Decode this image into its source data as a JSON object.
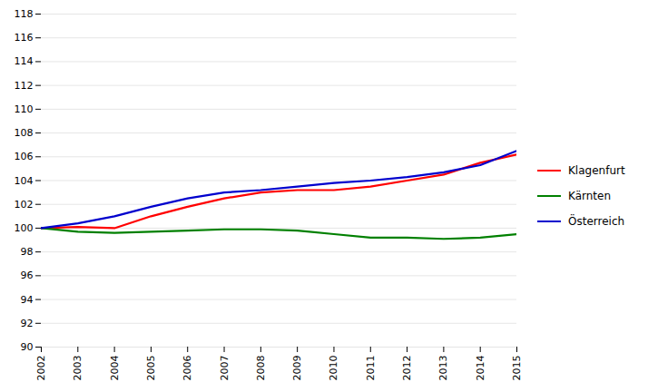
{
  "chart_data": {
    "type": "line",
    "x": [
      2002,
      2003,
      2004,
      2005,
      2006,
      2007,
      2008,
      2009,
      2010,
      2011,
      2012,
      2013,
      2014,
      2015
    ],
    "series": [
      {
        "name": "Klagenfurt",
        "color": "#ff0000",
        "values": [
          100.0,
          100.1,
          100.0,
          101.0,
          101.8,
          102.5,
          103.0,
          103.2,
          103.2,
          103.5,
          104.0,
          104.5,
          105.5,
          106.2
        ]
      },
      {
        "name": "Kärnten",
        "color": "#008000",
        "values": [
          100.0,
          99.7,
          99.6,
          99.7,
          99.8,
          99.9,
          99.9,
          99.8,
          99.5,
          99.2,
          99.2,
          99.1,
          99.2,
          99.5
        ]
      },
      {
        "name": "Österreich",
        "color": "#0000cd",
        "values": [
          100.0,
          100.4,
          101.0,
          101.8,
          102.5,
          103.0,
          103.2,
          103.5,
          103.8,
          104.0,
          104.3,
          104.7,
          105.3,
          106.5
        ]
      }
    ],
    "xlim": [
      2002,
      2015
    ],
    "xticks": [
      2002,
      2003,
      2004,
      2005,
      2006,
      2007,
      2008,
      2009,
      2010,
      2011,
      2012,
      2013,
      2014,
      2015
    ],
    "ylim": [
      90,
      118
    ],
    "yticks": [
      90,
      92,
      94,
      96,
      98,
      100,
      102,
      104,
      106,
      108,
      110,
      112,
      114,
      116,
      118
    ],
    "grid": true,
    "legend": "right"
  }
}
